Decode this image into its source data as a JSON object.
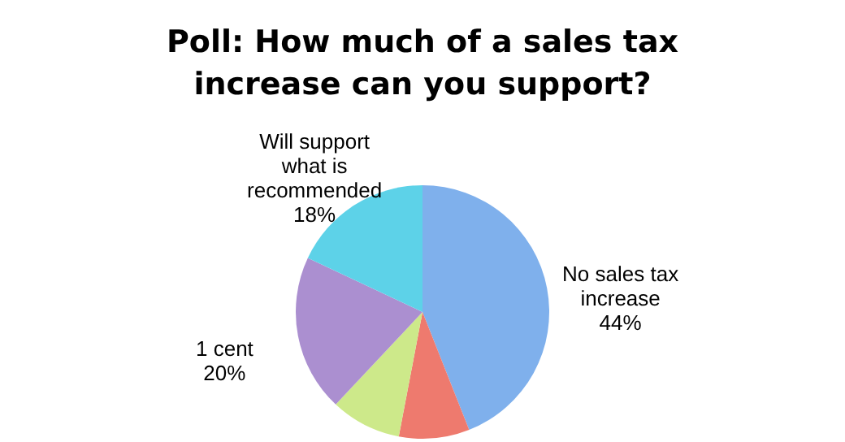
{
  "chart_data": {
    "type": "pie",
    "title": "Poll: How much of a sales tax increase can you support?",
    "categories": [
      "No sales tax increase",
      null,
      null,
      "1 cent",
      "Will support what is recommended"
    ],
    "values": [
      44,
      9,
      9,
      20,
      18
    ],
    "colors": [
      "#7fb0ec",
      "#ee7a6e",
      "#cde98a",
      "#ab8fd0",
      "#5dd2e8"
    ],
    "value_labels": [
      "44%",
      null,
      null,
      "20%",
      "18%"
    ],
    "legend": false
  }
}
